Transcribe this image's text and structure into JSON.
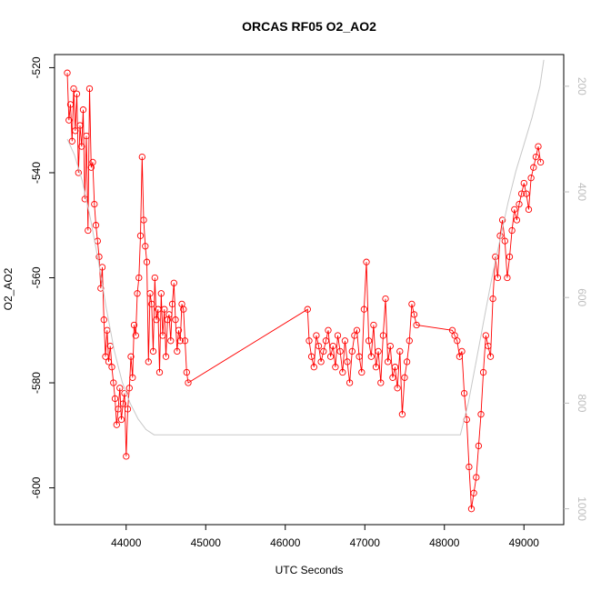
{
  "chart_data": {
    "type": "scatter",
    "title": "ORCAS RF05 O2_AO2",
    "xlabel": "UTC Seconds",
    "ylabel": "O2_AO2",
    "xlim": [
      43100,
      49500
    ],
    "ylim": [
      -607,
      -517.5
    ],
    "y2lim": [
      1030,
      140
    ],
    "x_ticks": [
      44000,
      45000,
      46000,
      47000,
      48000,
      49000
    ],
    "x_tick_labels": [
      "44000",
      "45000",
      "46000",
      "47000",
      "48000",
      "49000"
    ],
    "y_ticks": [
      -600,
      -580,
      -560,
      -540,
      -520
    ],
    "y_tick_labels": [
      "-600",
      "-580",
      "-560",
      "-540",
      "-520"
    ],
    "y2_ticks": [
      200,
      400,
      600,
      800,
      1000
    ],
    "y2_tick_labels": [
      "200",
      "400",
      "600",
      "800",
      "1000"
    ],
    "series": [
      {
        "style": "line-with-circles",
        "color": "#ff0000",
        "x": [
          43260,
          43280,
          43300,
          43320,
          43340,
          43360,
          43380,
          43400,
          43420,
          43440,
          43460,
          43480,
          43500,
          43520,
          43540,
          43560,
          43580,
          43600,
          43620,
          43640,
          43660,
          43680,
          43700,
          43720,
          43740,
          43760,
          43780,
          43800,
          43820,
          43840,
          43860,
          43880,
          43900,
          43920,
          43940,
          43960,
          43980,
          44000,
          44020,
          44040,
          44060,
          44080,
          44100,
          44120,
          44140,
          44160,
          44180,
          44200,
          44220,
          44240,
          44260,
          44280,
          44300,
          44320,
          44340,
          44360,
          44380,
          44400,
          44420,
          44440,
          44460,
          44480,
          44500,
          44520,
          44540,
          44560,
          44580,
          44600,
          44620,
          44640,
          44660,
          44680,
          44700,
          44720,
          44740,
          44760,
          44780,
          46280,
          46300,
          46330,
          46360,
          46390,
          46420,
          46450,
          46480,
          46510,
          46540,
          46570,
          46600,
          46630,
          46660,
          46690,
          46720,
          46750,
          46780,
          46810,
          46840,
          46870,
          46900,
          46930,
          46960,
          46990,
          47020,
          47050,
          47080,
          47110,
          47140,
          47170,
          47200,
          47230,
          47260,
          47290,
          47320,
          47350,
          47380,
          47410,
          47440,
          47470,
          47500,
          47530,
          47560,
          47590,
          47620,
          47650,
          48100,
          48130,
          48160,
          48190,
          48220,
          48250,
          48280,
          48310,
          48340,
          48370,
          48400,
          48430,
          48460,
          48490,
          48520,
          48550,
          48580,
          48610,
          48640,
          48670,
          48700,
          48730,
          48760,
          48790,
          48820,
          48850,
          48880,
          48910,
          48940,
          48970,
          49000,
          49030,
          49060,
          49090,
          49120,
          49150,
          49180,
          49210
        ],
        "y": [
          -521,
          -530,
          -527,
          -534,
          -524,
          -532,
          -525,
          -540,
          -531,
          -535,
          -528,
          -545,
          -533,
          -551,
          -524,
          -539,
          -538,
          -546,
          -550,
          -553,
          -556,
          -562,
          -558,
          -568,
          -575,
          -570,
          -576,
          -573,
          -577,
          -580,
          -583,
          -588,
          -585,
          -581,
          -587,
          -584,
          -582,
          -594,
          -585,
          -581,
          -575,
          -579,
          -569,
          -571,
          -563,
          -560,
          -552,
          -537,
          -549,
          -554,
          -557,
          -576,
          -563,
          -565,
          -574,
          -560,
          -568,
          -566,
          -578,
          -563,
          -571,
          -566,
          -575,
          -568,
          -567,
          -572,
          -565,
          -561,
          -568,
          -574,
          -570,
          -572,
          -565,
          -566,
          -572,
          -578,
          -580,
          -566,
          -572,
          -575,
          -577,
          -571,
          -573,
          -576,
          -574,
          -572,
          -570,
          -575,
          -573,
          -577,
          -571,
          -574,
          -578,
          -572,
          -576,
          -580,
          -574,
          -571,
          -570,
          -575,
          -578,
          -566,
          -557,
          -572,
          -575,
          -569,
          -577,
          -574,
          -580,
          -571,
          -564,
          -576,
          -573,
          -579,
          -577,
          -581,
          -574,
          -586,
          -579,
          -576,
          -572,
          -565,
          -567,
          -569,
          -570,
          -571,
          -572,
          -575,
          -574,
          -582,
          -587,
          -596,
          -604,
          -601,
          -598,
          -592,
          -586,
          -578,
          -571,
          -573,
          -575,
          -564,
          -556,
          -560,
          -552,
          -549,
          -553,
          -560,
          -556,
          -551,
          -547,
          -549,
          -546,
          -544,
          -542,
          -544,
          -547,
          -541,
          -539,
          -537,
          -535,
          -538
        ]
      },
      {
        "style": "line",
        "axis": "right",
        "color": "#c8c8c8",
        "x": [
          43260,
          43350,
          43450,
          43550,
          43650,
          43750,
          43850,
          43950,
          44050,
          44150,
          44250,
          44350,
          44500,
          46000,
          47000,
          48000,
          48200,
          48300,
          48400,
          48500,
          48600,
          48700,
          48800,
          48900,
          49000,
          49100,
          49200,
          49250
        ],
        "y": [
          300,
          330,
          380,
          450,
          530,
          620,
          700,
          760,
          800,
          830,
          850,
          860,
          860,
          860,
          860,
          860,
          860,
          800,
          720,
          640,
          560,
          490,
          420,
          360,
          310,
          260,
          200,
          150
        ]
      }
    ]
  }
}
